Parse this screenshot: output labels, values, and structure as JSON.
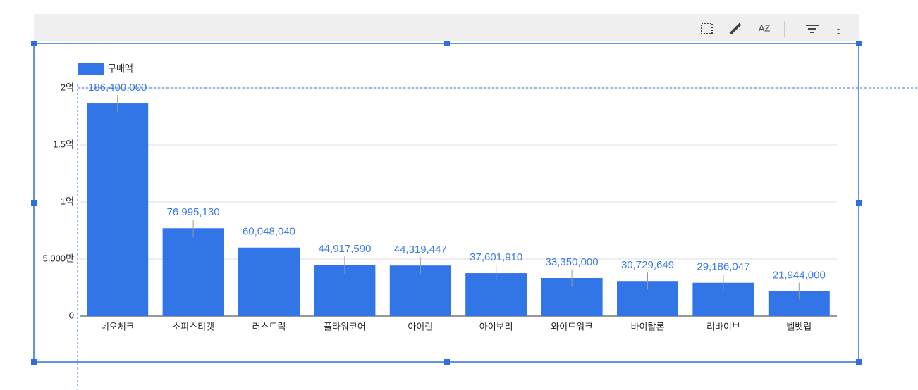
{
  "chart_data": {
    "type": "bar",
    "categories": [
      "네오체크",
      "소피스티켓",
      "러스트릭",
      "플라워코어",
      "아이린",
      "아이보리",
      "와이드워크",
      "바이탈론",
      "리바이브",
      "벨벳립"
    ],
    "series": [
      {
        "name": "구매액",
        "color": "#3275e6",
        "values": [
          186400000,
          76995130,
          60048040,
          44917590,
          44319447,
          37601910,
          33350000,
          30729649,
          29186047,
          21944000
        ],
        "value_labels": [
          "186,400,000",
          "76,995,130",
          "60,048,040",
          "44,917,590",
          "44,319,447",
          "37,601,910",
          "33,350,000",
          "30,729,649",
          "29,186,047",
          "21,944,000"
        ]
      }
    ],
    "ylim": [
      0,
      200000000
    ],
    "yticks": [
      0,
      {
        "value": 50000000,
        "label": "5,000만"
      },
      {
        "value": 100000000,
        "label": "1억"
      },
      {
        "value": 150000000,
        "label": "1.5억"
      },
      {
        "value": 200000000,
        "label": "2억"
      }
    ],
    "grid": true,
    "legend": "top-left"
  }
}
